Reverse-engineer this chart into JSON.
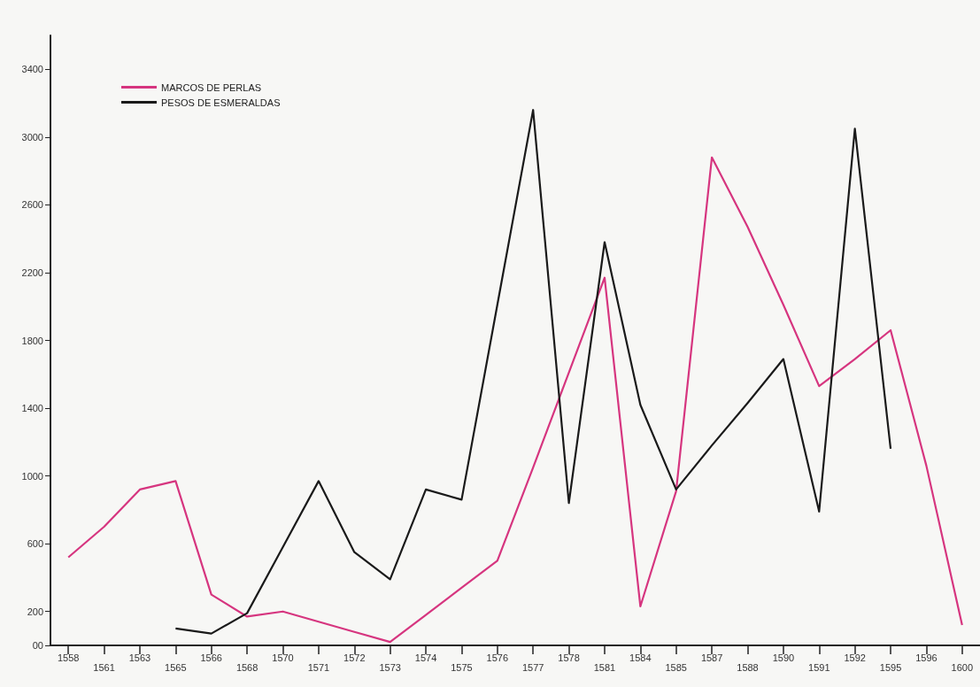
{
  "chart_data": {
    "type": "line",
    "categories": [
      "1558",
      "1561",
      "1563",
      "1565",
      "1566",
      "1568",
      "1570",
      "1571",
      "1572",
      "1573",
      "1574",
      "1575",
      "1576",
      "1577",
      "1578",
      "1581",
      "1584",
      "1585",
      "1587",
      "1588",
      "1590",
      "1591",
      "1592",
      "1595",
      "1596",
      "1600"
    ],
    "series": [
      {
        "name": "MARCOS DE PERLAS",
        "color": "#d6357f",
        "values": [
          520,
          700,
          920,
          970,
          300,
          170,
          200,
          140,
          80,
          20,
          180,
          340,
          500,
          1050,
          1610,
          2170,
          230,
          910,
          2880,
          2470,
          2010,
          1530,
          1690,
          1860,
          1060,
          120
        ]
      },
      {
        "name": "PESOS DE ESMERALDAS",
        "color": "#1a1a1a",
        "values": [
          null,
          null,
          null,
          100,
          70,
          190,
          580,
          970,
          550,
          390,
          920,
          860,
          2010,
          3160,
          840,
          2380,
          1420,
          920,
          1180,
          1430,
          1690,
          790,
          3050,
          1160,
          null,
          null
        ]
      }
    ],
    "ylim": [
      0,
      3600
    ],
    "yticks": [
      {
        "value": 0,
        "label": "00"
      },
      200,
      600,
      1000,
      1400,
      1800,
      2200,
      2600,
      3000,
      3400
    ],
    "grid": false,
    "legend": "top left",
    "marker": "none",
    "line_style": "solid"
  }
}
